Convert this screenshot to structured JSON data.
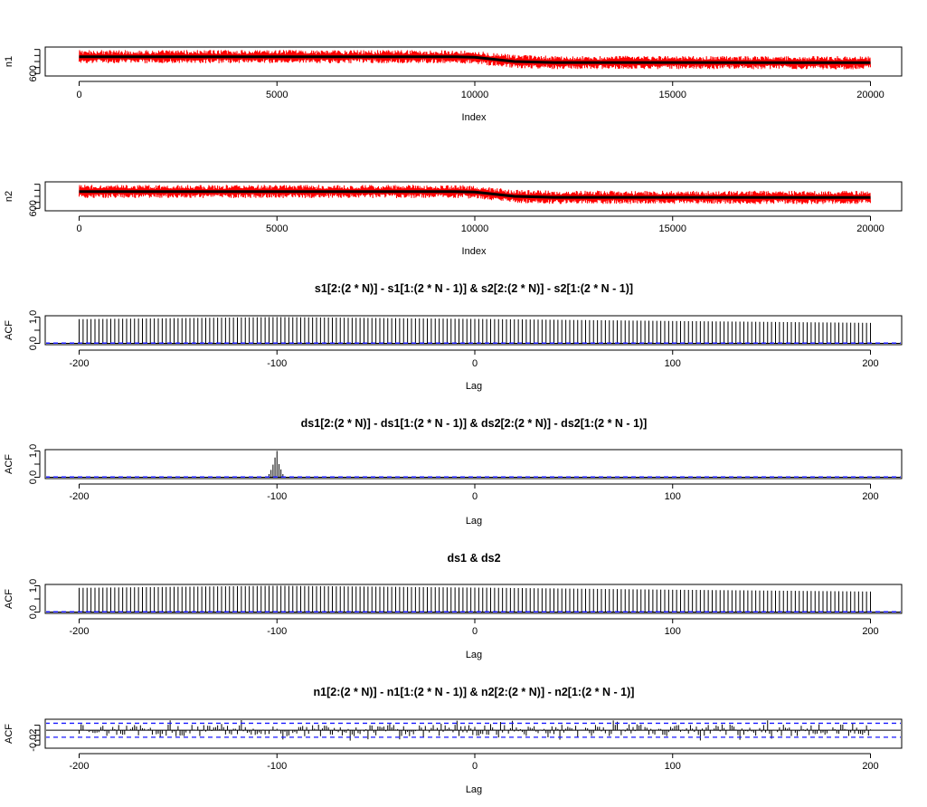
{
  "chart_data": [
    {
      "type": "line",
      "title": "",
      "xlabel": "Index",
      "ylabel": "n1",
      "xlim": [
        0,
        20000
      ],
      "ylim": [
        580,
        820
      ],
      "x_ticks": [
        "0",
        "5000",
        "10000",
        "15000",
        "20000"
      ],
      "y_ticks": [
        "600"
      ],
      "series": [
        {
          "color": "#ff0000",
          "style": "noisy raw series",
          "level_before": 740,
          "level_after": 690,
          "noise_range": 55
        },
        {
          "color": "#000000",
          "style": "smoothed trend",
          "points": [
            [
              0,
              740
            ],
            [
              9500,
              740
            ],
            [
              10000,
              735
            ],
            [
              11000,
              700
            ],
            [
              12000,
              692
            ],
            [
              20000,
              690
            ]
          ]
        }
      ]
    },
    {
      "type": "line",
      "title": "",
      "xlabel": "Index",
      "ylabel": "n2",
      "xlim": [
        0,
        20000
      ],
      "ylim": [
        580,
        820
      ],
      "x_ticks": [
        "0",
        "5000",
        "10000",
        "15000",
        "20000"
      ],
      "y_ticks": [
        "600"
      ],
      "series": [
        {
          "color": "#ff0000",
          "style": "noisy raw series",
          "level_before": 740,
          "level_after": 690,
          "noise_range": 55
        },
        {
          "color": "#000000",
          "style": "smoothed trend",
          "points": [
            [
              0,
              740
            ],
            [
              9500,
              740
            ],
            [
              10000,
              735
            ],
            [
              11000,
              700
            ],
            [
              12000,
              692
            ],
            [
              20000,
              690
            ]
          ]
        }
      ]
    },
    {
      "type": "bar",
      "title": "s1[2:(2 * N)] - s1[1:(2 * N - 1)] & s2[2:(2 * N)] - s2[1:(2 * N - 1)]",
      "xlabel": "Lag",
      "ylabel": "ACF",
      "xlim": [
        -200,
        200
      ],
      "ylim": [
        -0.05,
        1.05
      ],
      "x_ticks": [
        "-200",
        "-100",
        "0",
        "100",
        "200"
      ],
      "y_ticks": [
        "0.0",
        "1.0"
      ],
      "confidence_band": 0.014,
      "lag_step": 2,
      "profile": "smooth",
      "acf_knots": [
        [
          -200,
          0.92
        ],
        [
          -100,
          1.0
        ],
        [
          0,
          0.93
        ],
        [
          100,
          0.85
        ],
        [
          200,
          0.78
        ]
      ]
    },
    {
      "type": "bar",
      "title": "ds1[2:(2 * N)] - ds1[1:(2 * N - 1)] & ds2[2:(2 * N)] - ds2[1:(2 * N - 1)]",
      "xlabel": "Lag",
      "ylabel": "ACF",
      "xlim": [
        -200,
        200
      ],
      "ylim": [
        -0.05,
        1.05
      ],
      "x_ticks": [
        "-200",
        "-100",
        "0",
        "100",
        "200"
      ],
      "y_ticks": [
        "0.0",
        "1.0"
      ],
      "confidence_band": 0.014,
      "lag_step": 1,
      "profile": "spike",
      "spikes": [
        [
          -104,
          0.12
        ],
        [
          -103,
          0.28
        ],
        [
          -102,
          0.48
        ],
        [
          -101,
          0.75
        ],
        [
          -100,
          1.0
        ],
        [
          -99,
          0.5
        ],
        [
          -98,
          0.3
        ],
        [
          -97,
          0.12
        ]
      ]
    },
    {
      "type": "bar",
      "title": "ds1 & ds2",
      "xlabel": "Lag",
      "ylabel": "ACF",
      "xlim": [
        -200,
        200
      ],
      "ylim": [
        -0.05,
        1.05
      ],
      "x_ticks": [
        "-200",
        "-100",
        "0",
        "100",
        "200"
      ],
      "y_ticks": [
        "0.0",
        "1.0"
      ],
      "confidence_band": 0.014,
      "lag_step": 2,
      "profile": "smooth",
      "acf_knots": [
        [
          -200,
          0.92
        ],
        [
          -100,
          1.0
        ],
        [
          0,
          0.93
        ],
        [
          100,
          0.85
        ],
        [
          200,
          0.78
        ]
      ]
    },
    {
      "type": "bar",
      "title": "n1[2:(2 * N)] - n1[1:(2 * N - 1)] & n2[2:(2 * N)] - n2[1:(2 * N - 1)]",
      "xlabel": "Lag",
      "ylabel": "ACF",
      "xlim": [
        -200,
        200
      ],
      "ylim": [
        -0.036,
        0.022
      ],
      "x_ticks": [
        "-200",
        "-100",
        "0",
        "100",
        "200"
      ],
      "y_ticks": [
        "-0.02"
      ],
      "confidence_band": 0.014,
      "lag_step": 1,
      "profile": "noise",
      "noise_amplitude": 0.012
    }
  ]
}
